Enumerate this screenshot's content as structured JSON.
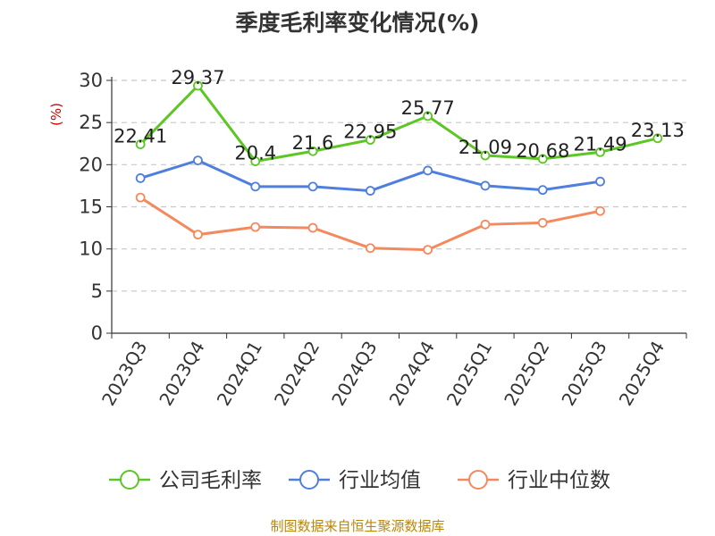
{
  "chart_data": {
    "type": "line",
    "title": "季度毛利率变化情况(%)",
    "ylabel": "(%)",
    "ylim": [
      0,
      30
    ],
    "yticks": [
      0,
      5,
      10,
      15,
      20,
      25,
      30
    ],
    "categories": [
      "2023Q3",
      "2023Q4",
      "2024Q1",
      "2024Q2",
      "2024Q3",
      "2024Q4",
      "2025Q1",
      "2025Q2",
      "2025Q3",
      "2025Q4"
    ],
    "grid": true,
    "legend": "bottom",
    "series": [
      {
        "name": "公司毛利率",
        "color": "#5cc624",
        "values": [
          22.41,
          29.37,
          20.4,
          21.6,
          22.95,
          25.77,
          21.09,
          20.68,
          21.49,
          23.13
        ],
        "labels": [
          "22.41",
          "29.37",
          "20.4",
          "21.6",
          "22.95",
          "25.77",
          "21.09",
          "20.68",
          "21.49",
          "23.13"
        ]
      },
      {
        "name": "行业均值",
        "color": "#4f7fde",
        "values": [
          18.4,
          20.5,
          17.4,
          17.4,
          16.9,
          19.3,
          17.5,
          17.0,
          18.0,
          null
        ]
      },
      {
        "name": "行业中位数",
        "color": "#f4895e",
        "values": [
          16.1,
          11.7,
          12.6,
          12.5,
          10.1,
          9.9,
          12.9,
          13.1,
          14.5,
          null
        ]
      }
    ],
    "source": "制图数据来自恒生聚源数据库"
  }
}
